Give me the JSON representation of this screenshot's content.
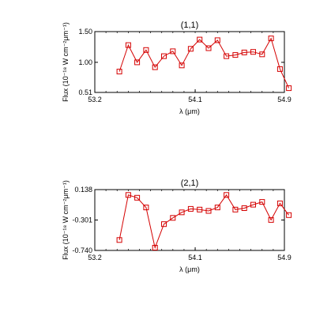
{
  "chart_data": [
    {
      "type": "line",
      "title": "(1,1)",
      "xlabel": "λ (μm)",
      "ylabel": "Flux (10⁻¹⁸ W cm⁻²μm⁻¹)",
      "xlim": [
        53.2,
        54.9
      ],
      "ylim": [
        0.51,
        1.5
      ],
      "xticks": [
        53.2,
        54.1,
        54.9
      ],
      "xtick_labels": [
        "53.2",
        "54.1",
        "54.9"
      ],
      "yticks": [
        0.51,
        1.0,
        1.5
      ],
      "ytick_labels": [
        "0.51",
        "1.00",
        "1.50"
      ],
      "grid": false,
      "series": [
        {
          "color": "#d40000",
          "marker": "square",
          "x": [
            53.42,
            53.5,
            53.58,
            53.66,
            53.74,
            53.82,
            53.9,
            53.98,
            54.06,
            54.14,
            54.22,
            54.3,
            54.38,
            54.46,
            54.54,
            54.62,
            54.7,
            54.78,
            54.86,
            54.94
          ],
          "y": [
            0.85,
            1.28,
            1.0,
            1.2,
            0.92,
            1.1,
            1.18,
            0.95,
            1.22,
            1.37,
            1.23,
            1.36,
            1.1,
            1.12,
            1.16,
            1.17,
            1.13,
            1.39,
            0.89,
            0.58
          ]
        }
      ]
    },
    {
      "type": "line",
      "title": "(2,1)",
      "xlabel": "λ (μm)",
      "ylabel": "Flux (10⁻¹⁸ W cm⁻²μm⁻¹)",
      "xlim": [
        53.2,
        54.9
      ],
      "ylim": [
        -0.74,
        0.138
      ],
      "xticks": [
        53.2,
        54.1,
        54.9
      ],
      "xtick_labels": [
        "53.2",
        "54.1",
        "54.9"
      ],
      "yticks": [
        -0.74,
        -0.301,
        0.138
      ],
      "ytick_labels": [
        "-0.740",
        "-0.301",
        "0.138"
      ],
      "grid": false,
      "series": [
        {
          "color": "#d40000",
          "marker": "square",
          "x": [
            53.42,
            53.5,
            53.58,
            53.66,
            53.74,
            53.82,
            53.9,
            53.98,
            54.06,
            54.14,
            54.22,
            54.3,
            54.38,
            54.46,
            54.54,
            54.62,
            54.7,
            54.78,
            54.86,
            54.94
          ],
          "y": [
            -0.59,
            0.06,
            0.02,
            -0.12,
            -0.7,
            -0.36,
            -0.27,
            -0.19,
            -0.14,
            -0.15,
            -0.17,
            -0.12,
            0.06,
            -0.15,
            -0.13,
            -0.08,
            -0.04,
            -0.3,
            -0.06,
            -0.23
          ]
        }
      ]
    }
  ]
}
